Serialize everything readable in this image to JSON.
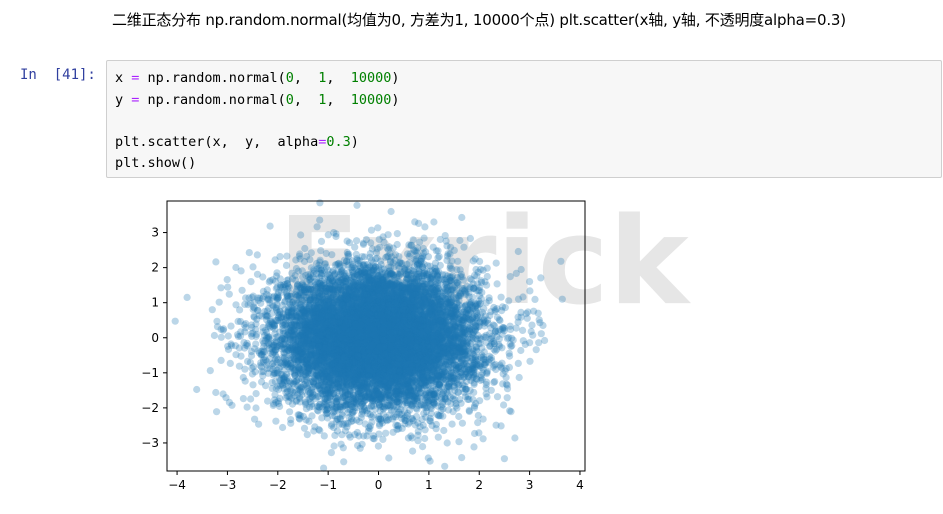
{
  "markdown_title": "二维正态分布 np.random.normal(均值为0, 方差为1, 10000个点) plt.scatter(x轴, y轴, 不透明度alpha=0.3)",
  "cell": {
    "prompt": "In  [41]:",
    "lines": [
      [
        {
          "t": "x ",
          "c": "nm"
        },
        {
          "t": "=",
          "c": "op"
        },
        {
          "t": " np.random.normal(",
          "c": "nm"
        },
        {
          "t": "0",
          "c": "num"
        },
        {
          "t": ",  ",
          "c": "nm"
        },
        {
          "t": "1",
          "c": "num"
        },
        {
          "t": ",  ",
          "c": "nm"
        },
        {
          "t": "10000",
          "c": "num"
        },
        {
          "t": ")",
          "c": "nm"
        }
      ],
      [
        {
          "t": "y ",
          "c": "nm"
        },
        {
          "t": "=",
          "c": "op"
        },
        {
          "t": " np.random.normal(",
          "c": "nm"
        },
        {
          "t": "0",
          "c": "num"
        },
        {
          "t": ",  ",
          "c": "nm"
        },
        {
          "t": "1",
          "c": "num"
        },
        {
          "t": ",  ",
          "c": "nm"
        },
        {
          "t": "10000",
          "c": "num"
        },
        {
          "t": ")",
          "c": "nm"
        }
      ],
      [],
      [
        {
          "t": "plt.scatter(x,  y,  alpha",
          "c": "nm"
        },
        {
          "t": "=",
          "c": "op"
        },
        {
          "t": "0.3",
          "c": "num"
        },
        {
          "t": ")",
          "c": "nm"
        }
      ],
      [
        {
          "t": "plt.show()",
          "c": "nm"
        }
      ]
    ]
  },
  "watermark": "Exrick",
  "chart_data": {
    "type": "scatter",
    "title": "",
    "xlabel": "",
    "ylabel": "",
    "xlim": [
      -4.2,
      4.1
    ],
    "ylim": [
      -3.8,
      3.9
    ],
    "xticks": [
      -4,
      -3,
      -2,
      -1,
      0,
      1,
      2,
      3,
      4
    ],
    "yticks": [
      -3,
      -2,
      -1,
      0,
      1,
      2,
      3
    ],
    "grid": false,
    "point_color": "#1f77b4",
    "alpha": 0.3,
    "n_points": 10000,
    "distribution": {
      "x_mean": 0,
      "x_std": 1,
      "y_mean": 0,
      "y_std": 1
    },
    "outliers": [
      {
        "x": -3.8,
        "y": 1.15
      },
      {
        "x": 3.65,
        "y": 1.1
      },
      {
        "x": 0.25,
        "y": 3.6
      },
      {
        "x": 2.5,
        "y": -3.45
      },
      {
        "x": 3.0,
        "y": 1.6
      },
      {
        "x": -3.3,
        "y": 0.8
      },
      {
        "x": 1.1,
        "y": 3.3
      }
    ]
  }
}
